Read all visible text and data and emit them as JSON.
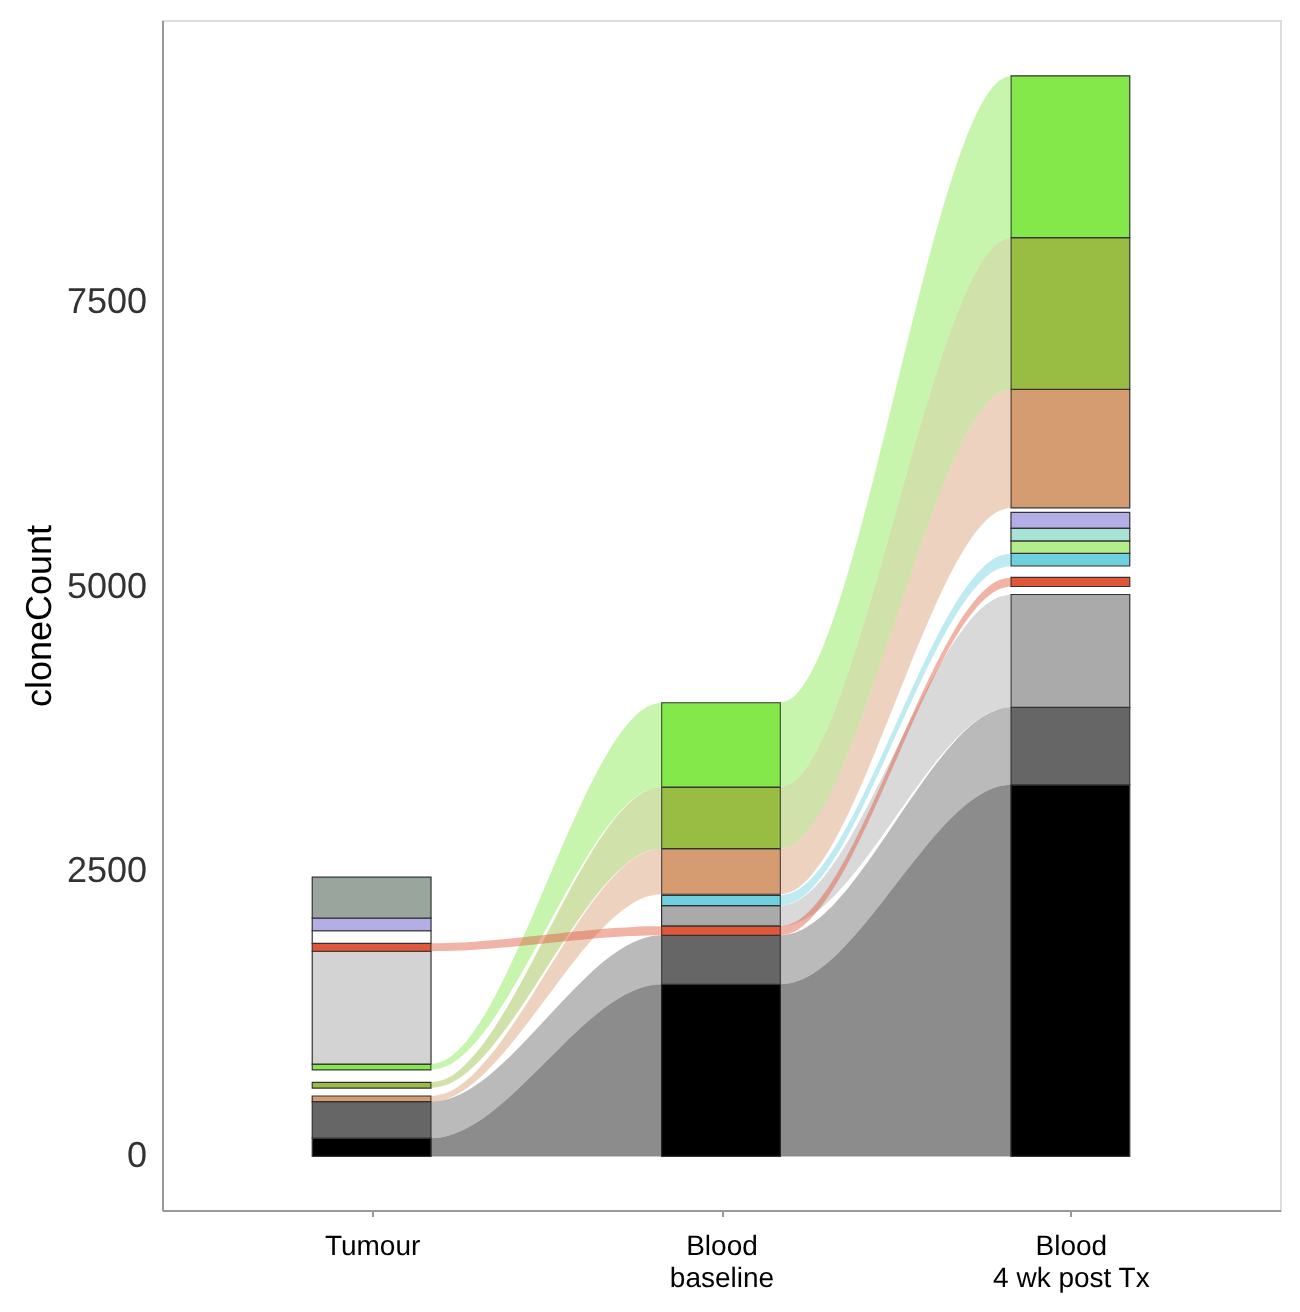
{
  "chart_data": {
    "type": "bar",
    "ylabel": "cloneCount",
    "categories": [
      "Tumour",
      "Blood\nbaseline",
      "Blood\n4 wk post Tx"
    ],
    "ylim": [
      -470,
      9970
    ],
    "yticks": [
      0,
      2500,
      5000,
      7500
    ],
    "grid": false,
    "series": [
      {
        "color": "#000000",
        "values": [
          160,
          1510,
          3260
        ],
        "base": [
          0,
          0,
          0
        ]
      },
      {
        "color": "#666666",
        "values": [
          320,
          430,
          680
        ],
        "base": [
          160,
          1510,
          3260
        ]
      },
      {
        "color": "#aaaaaa",
        "values": [
          null,
          180,
          990
        ],
        "base": [
          null,
          2020,
          3940
        ]
      },
      {
        "color": "#d59c72",
        "values": [
          50,
          400,
          1040
        ],
        "base": [
          480,
          2300,
          5690
        ]
      },
      {
        "color": "#99bd42",
        "values": [
          50,
          540,
          1330
        ],
        "base": [
          600,
          2700,
          6730
        ]
      },
      {
        "color": "#84e84a",
        "values": [
          50,
          740,
          1420
        ],
        "base": [
          760,
          3240,
          8060
        ]
      },
      {
        "color": "#d3d3d3",
        "values": [
          990,
          null,
          null
        ],
        "base": [
          810,
          null,
          null
        ]
      },
      {
        "color": "#e0573a",
        "values": [
          70,
          80,
          80
        ],
        "base": [
          1800,
          1940,
          5000
        ]
      },
      {
        "color": "#ffffff",
        "values": [
          110,
          null,
          null
        ],
        "base": [
          1870,
          null,
          null
        ]
      },
      {
        "color": "#b3aee6",
        "values": [
          110,
          null,
          140
        ],
        "base": [
          1980,
          null,
          5510
        ]
      },
      {
        "color": "#9aa59e",
        "values": [
          360,
          null,
          null
        ],
        "base": [
          2090,
          null,
          null
        ]
      },
      {
        "color": "#6fd0e0",
        "values": [
          null,
          90,
          110
        ],
        "base": [
          null,
          2200,
          5180
        ]
      },
      {
        "color": "#b4ee8a",
        "values": [
          null,
          null,
          110
        ],
        "base": [
          null,
          null,
          5290
        ]
      },
      {
        "color": "#a8e3d7",
        "values": [
          null,
          null,
          110
        ],
        "base": [
          null,
          null,
          5400
        ]
      }
    ]
  }
}
